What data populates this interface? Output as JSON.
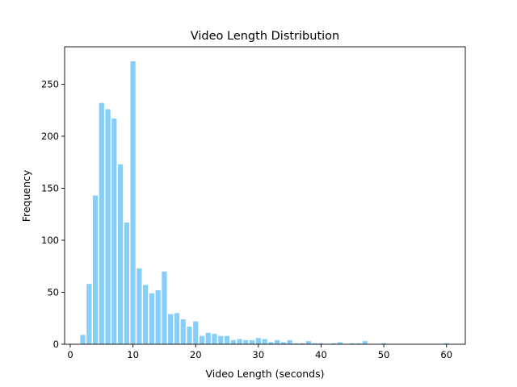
{
  "chart_data": {
    "type": "bar",
    "title": "Video Length Distribution",
    "xlabel": "Video Length (seconds)",
    "ylabel": "Frequency",
    "xlim": [
      -0.9,
      63
    ],
    "ylim": [
      0,
      286
    ],
    "xticks": [
      0,
      10,
      20,
      30,
      40,
      50,
      60
    ],
    "yticks": [
      0,
      50,
      100,
      150,
      200,
      250
    ],
    "bar_color": "#87CEFA",
    "grid": false,
    "bars": [
      {
        "x": 2,
        "y": 9
      },
      {
        "x": 3,
        "y": 58
      },
      {
        "x": 4,
        "y": 143
      },
      {
        "x": 5,
        "y": 232
      },
      {
        "x": 6,
        "y": 226
      },
      {
        "x": 7,
        "y": 217
      },
      {
        "x": 8,
        "y": 173
      },
      {
        "x": 9,
        "y": 117
      },
      {
        "x": 10,
        "y": 272
      },
      {
        "x": 11,
        "y": 73
      },
      {
        "x": 12,
        "y": 57
      },
      {
        "x": 13,
        "y": 49
      },
      {
        "x": 14,
        "y": 52
      },
      {
        "x": 15,
        "y": 70
      },
      {
        "x": 16,
        "y": 29
      },
      {
        "x": 17,
        "y": 30
      },
      {
        "x": 18,
        "y": 24
      },
      {
        "x": 19,
        "y": 17
      },
      {
        "x": 20,
        "y": 22
      },
      {
        "x": 21,
        "y": 8
      },
      {
        "x": 22,
        "y": 11
      },
      {
        "x": 23,
        "y": 10
      },
      {
        "x": 24,
        "y": 8
      },
      {
        "x": 25,
        "y": 8
      },
      {
        "x": 26,
        "y": 4
      },
      {
        "x": 27,
        "y": 5
      },
      {
        "x": 28,
        "y": 4
      },
      {
        "x": 29,
        "y": 4
      },
      {
        "x": 30,
        "y": 6
      },
      {
        "x": 31,
        "y": 5
      },
      {
        "x": 32,
        "y": 2
      },
      {
        "x": 33,
        "y": 4
      },
      {
        "x": 34,
        "y": 2
      },
      {
        "x": 35,
        "y": 4
      },
      {
        "x": 36,
        "y": 1
      },
      {
        "x": 37,
        "y": 1
      },
      {
        "x": 38,
        "y": 3
      },
      {
        "x": 39,
        "y": 1
      },
      {
        "x": 40,
        "y": 1
      },
      {
        "x": 42,
        "y": 1
      },
      {
        "x": 43,
        "y": 2
      },
      {
        "x": 45,
        "y": 1
      },
      {
        "x": 46,
        "y": 1
      },
      {
        "x": 47,
        "y": 3
      },
      {
        "x": 50,
        "y": 1
      },
      {
        "x": 60,
        "y": 1
      }
    ]
  }
}
